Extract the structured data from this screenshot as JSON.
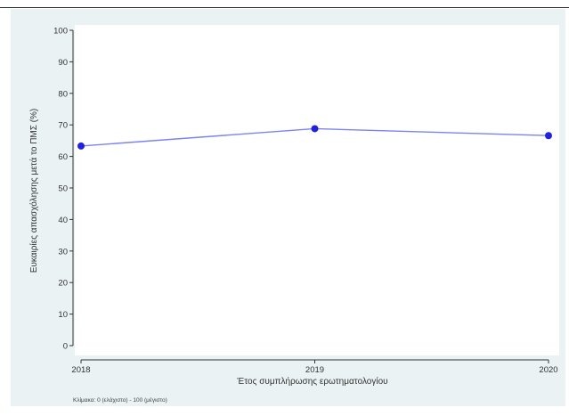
{
  "chart_data": {
    "type": "line",
    "x": [
      "2018",
      "2019",
      "2020"
    ],
    "series": [
      {
        "values": [
          63.3,
          68.8,
          66.6
        ]
      }
    ],
    "xlabel": "Έτος συμπλήρωσης ερωτηματολογίου",
    "ylabel": "Ευκαιρίες απασχόλησης μετά το ΠΜΣ (%)",
    "ylim": [
      0,
      100
    ],
    "yticks": [
      0,
      10,
      20,
      30,
      40,
      50,
      60,
      70,
      80,
      90,
      100
    ],
    "note": "Κλίμακα: 0 (ελάχιστο) - 100 (μέγιστο)",
    "grid": false,
    "line_color": "#7b84f0",
    "marker_color": "#2222dd",
    "panel_color": "#eaf2f3",
    "plot_color": "#ffffff"
  }
}
